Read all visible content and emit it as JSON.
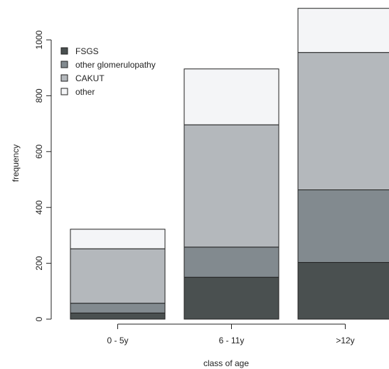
{
  "chart_data": {
    "type": "bar",
    "stacked": true,
    "categories": [
      "0 - 5y",
      "6 - 11y",
      ">12y"
    ],
    "series": [
      {
        "name": "FSGS",
        "color": "#4a5050",
        "values": [
          22,
          150,
          203
        ]
      },
      {
        "name": "other glomerulopathy",
        "color": "#828a8f",
        "values": [
          35,
          108,
          260
        ]
      },
      {
        "name": "CAKUT",
        "color": "#b4b8bc",
        "values": [
          195,
          438,
          492
        ]
      },
      {
        "name": "other",
        "color": "#f4f5f7",
        "values": [
          70,
          200,
          158
        ]
      }
    ],
    "xlabel": "class of age",
    "ylabel": "frequency",
    "yticks": [
      0,
      200,
      400,
      600,
      800,
      1000
    ],
    "ylim": [
      0,
      1120
    ],
    "legend_position": "top-left",
    "grid": false
  }
}
